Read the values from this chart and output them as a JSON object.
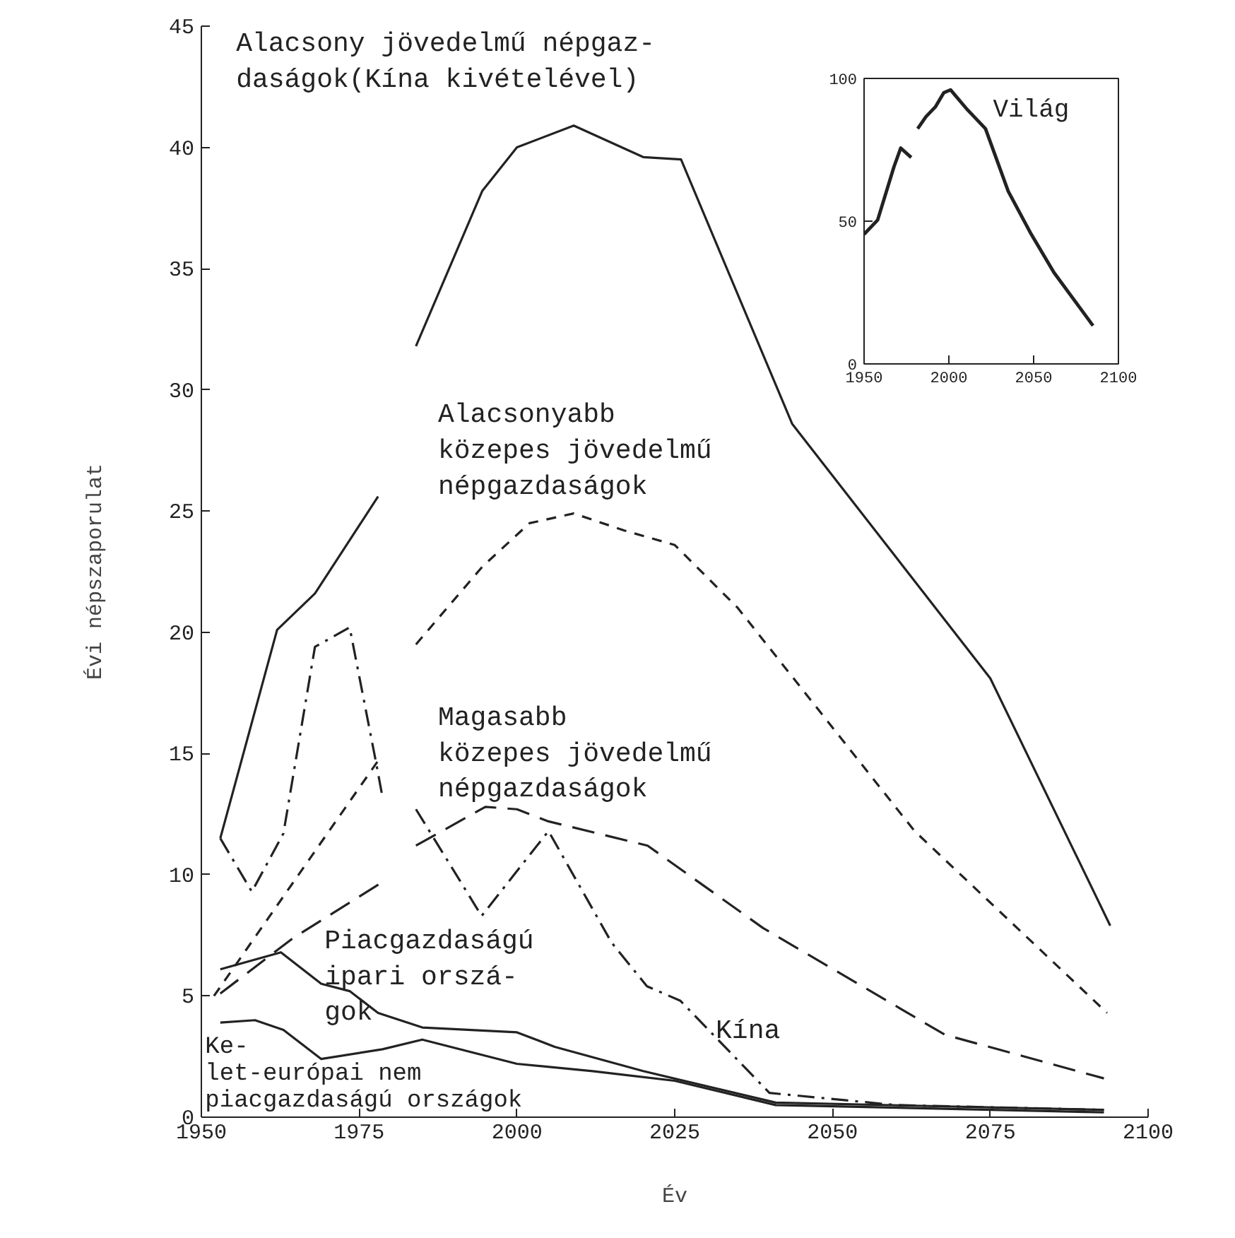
{
  "chart_data": [
    {
      "type": "line",
      "xlabel": "Év",
      "ylabel": "Évi népszaporulat",
      "xlim": [
        1950,
        2100
      ],
      "ylim": [
        0,
        45
      ],
      "xticks": [
        1950,
        1975,
        2000,
        2025,
        2050,
        2075,
        2100
      ],
      "yticks": [
        0,
        5,
        10,
        15,
        20,
        25,
        30,
        35,
        40,
        45
      ],
      "grid": false,
      "series": [
        {
          "name": "Alacsony jövedelmű népgaz-\ndaságok(Kína kivételével)",
          "color": "#222222",
          "line_style": "solid",
          "x": [
            1953,
            1962,
            1968,
            1978,
            1981,
            1984,
            1994.5,
            2000,
            2009,
            2020,
            2026,
            2043.6,
            2075,
            2094
          ],
          "values": [
            11.5,
            20.1,
            21.6,
            25.6,
            null,
            31.8,
            38.2,
            40.0,
            40.9,
            39.6,
            39.5,
            28.6,
            18.1,
            7.9
          ]
        },
        {
          "name": "Alacsonyabb\nközepes jövedelmű\nnépgazdaságok",
          "color": "#222222",
          "line_style": "dashed",
          "x": [
            1952,
            1978,
            1981,
            1984,
            1994.5,
            2002,
            2009,
            2017,
            2025,
            2035,
            2063,
            2093.5
          ],
          "values": [
            5.0,
            14.7,
            null,
            19.5,
            22.7,
            24.5,
            24.9,
            24.2,
            23.6,
            21.0,
            11.8,
            4.3
          ]
        },
        {
          "name": "Magasabb\nközepes jövedelmű\nnépgazdaságok",
          "color": "#222222",
          "line_style": "longdash",
          "x": [
            1953,
            1964.6,
            1978.7,
            1981,
            1984,
            1995,
            2000,
            2005,
            2020.7,
            2039,
            2067.8,
            2093
          ],
          "values": [
            5.1,
            7.4,
            9.7,
            null,
            11.2,
            12.8,
            12.7,
            12.2,
            11.2,
            7.8,
            3.4,
            1.6
          ]
        },
        {
          "name": "Kína",
          "color": "#222222",
          "line_style": "dashdot",
          "x": [
            1953,
            1958,
            1963,
            1968,
            1973.5,
            1977.7,
            1978.7,
            1981,
            1984,
            1994.4,
            2005,
            2015,
            2020.6,
            2025.9,
            2040,
            2060,
            2093
          ],
          "values": [
            11.5,
            9.3,
            11.7,
            19.4,
            20.2,
            14.6,
            13.2,
            null,
            12.7,
            8.3,
            11.8,
            7.2,
            5.4,
            4.8,
            1.0,
            0.5,
            0.3
          ]
        },
        {
          "name": "Piacgazdaságú\nipari orszá-\ngok",
          "color": "#222222",
          "line_style": "solid",
          "x": [
            1953,
            1962.6,
            1969,
            1973.5,
            1978,
            1985,
            2000,
            2006,
            2020,
            2041,
            2093
          ],
          "values": [
            6.1,
            6.8,
            5.5,
            5.2,
            4.3,
            3.7,
            3.5,
            2.9,
            1.9,
            0.6,
            0.3
          ]
        },
        {
          "name": "Ke-\nlet-európai nem\npiacgazdaságú országok",
          "color": "#222222",
          "line_style": "solid",
          "x": [
            1953,
            1958.5,
            1963,
            1969,
            1978.7,
            1985,
            2000,
            2012,
            2025,
            2041,
            2093
          ],
          "values": [
            3.9,
            4.0,
            3.6,
            2.4,
            2.8,
            3.2,
            2.2,
            1.9,
            1.5,
            0.5,
            0.2
          ]
        }
      ]
    },
    {
      "type": "line",
      "xlim": [
        1950,
        2100
      ],
      "ylim": [
        0,
        100
      ],
      "xticks": [
        1950,
        2000,
        2050,
        2100
      ],
      "yticks": [
        0,
        50,
        100
      ],
      "grid": false,
      "series": [
        {
          "name": "Világ",
          "color": "#222222",
          "line_style": "solid",
          "x": [
            1950,
            1958,
            1967.6,
            1971.6,
            1977.8,
            1980,
            1981.6,
            1986.5,
            1992,
            1997,
            2001,
            2011,
            2021.6,
            2035,
            2048.6,
            2062,
            2085
          ],
          "values": [
            45.4,
            50.4,
            69,
            75.6,
            72.3,
            null,
            82.4,
            86.6,
            90,
            95,
            96,
            89,
            82.4,
            60.5,
            45.4,
            32,
            13.4
          ]
        }
      ]
    }
  ]
}
